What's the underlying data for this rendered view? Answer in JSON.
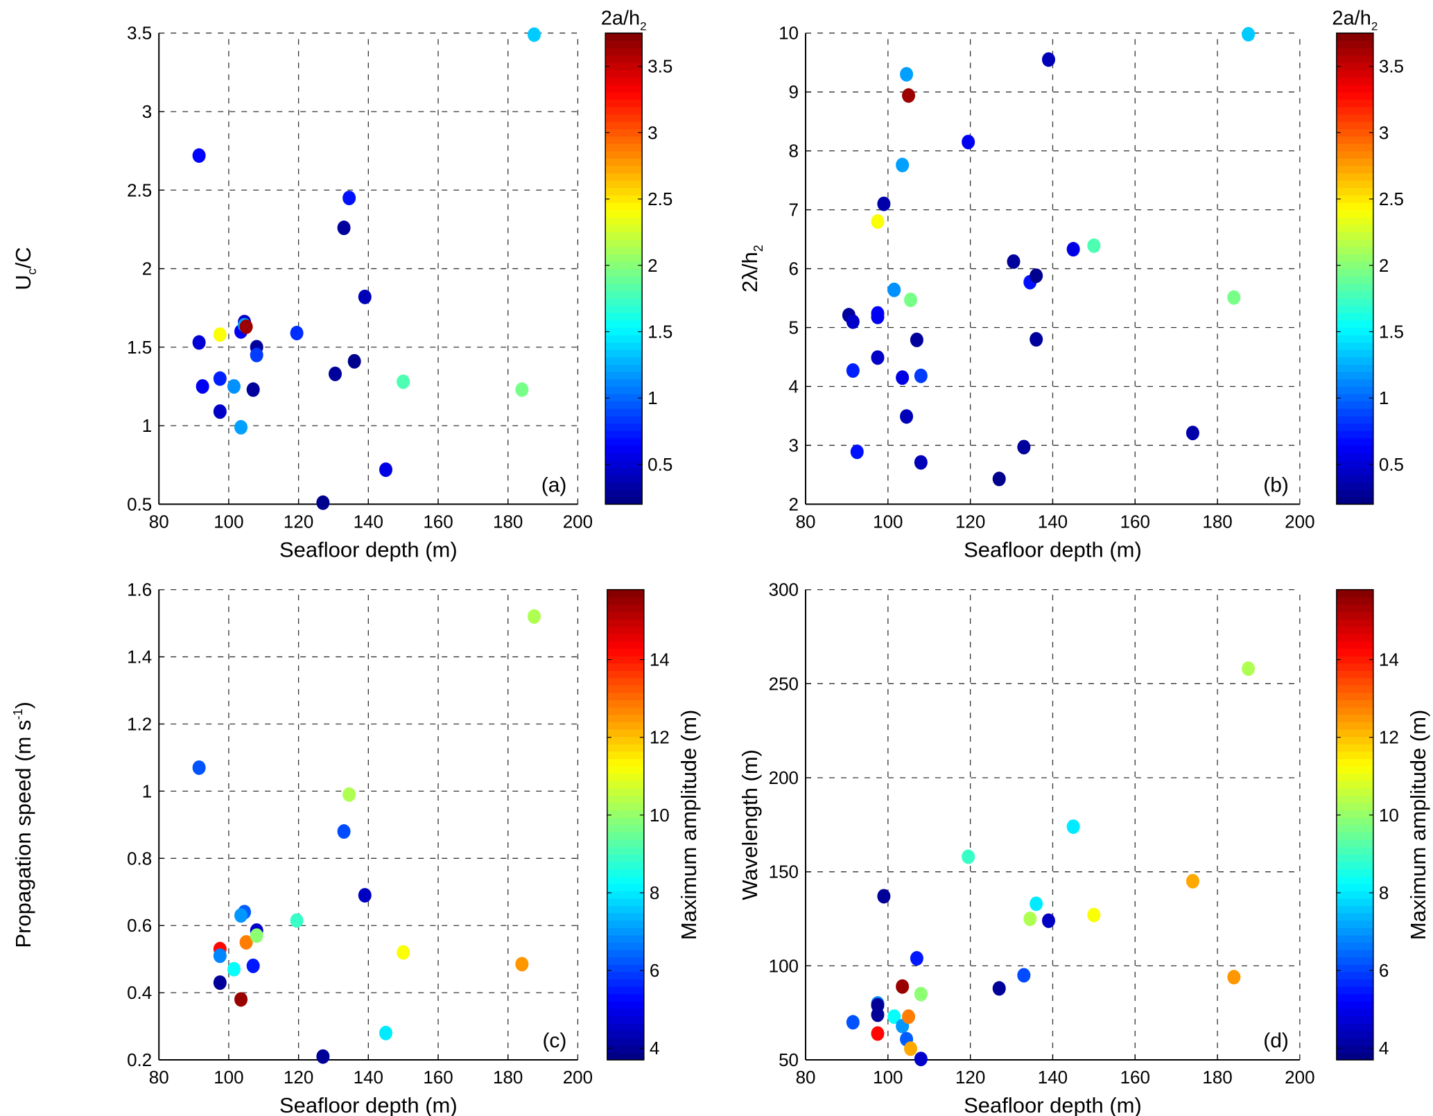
{
  "chart_data": [
    {
      "id": "a",
      "type": "scatter",
      "panel_label": "(a)",
      "xlabel": "Seafloor depth (m)",
      "ylabel_main": "U",
      "ylabel_sub": "c",
      "ylabel_tail": "/C",
      "xlim": [
        80,
        200
      ],
      "ylim": [
        0.5,
        3.5
      ],
      "xticks": [
        "80",
        "100",
        "120",
        "140",
        "160",
        "180",
        "200"
      ],
      "yticks": [
        "0.5",
        "1",
        "1.5",
        "2",
        "2.5",
        "3",
        "3.5"
      ],
      "grid": true,
      "colorbar": {
        "title_main": "2a/h",
        "title_sub": "2",
        "range": [
          0.2,
          3.75
        ],
        "ticks": [
          "0.5",
          "1",
          "1.5",
          "2",
          "2.5",
          "3",
          "3.5"
        ],
        "tick_values": [
          0.5,
          1,
          1.5,
          2,
          2.5,
          3,
          3.5
        ],
        "colormap": "jet"
      },
      "points": [
        {
          "x": 91.5,
          "y": 2.72,
          "c": 0.65
        },
        {
          "x": 91.5,
          "y": 1.53,
          "c": 0.5
        },
        {
          "x": 92.5,
          "y": 1.25,
          "c": 0.6
        },
        {
          "x": 97.5,
          "y": 1.58,
          "c": 2.4
        },
        {
          "x": 97.5,
          "y": 1.3,
          "c": 0.75
        },
        {
          "x": 97.5,
          "y": 1.09,
          "c": 0.45
        },
        {
          "x": 101.5,
          "y": 1.25,
          "c": 1.15
        },
        {
          "x": 103.5,
          "y": 0.99,
          "c": 1.2
        },
        {
          "x": 103.5,
          "y": 1.6,
          "c": 0.6
        },
        {
          "x": 104.5,
          "y": 1.66,
          "c": 0.45
        },
        {
          "x": 104.5,
          "y": 1.64,
          "c": 1.2
        },
        {
          "x": 105.0,
          "y": 1.63,
          "c": 3.65
        },
        {
          "x": 108.0,
          "y": 1.5,
          "c": 0.3
        },
        {
          "x": 108.0,
          "y": 1.45,
          "c": 0.85
        },
        {
          "x": 107.0,
          "y": 1.23,
          "c": 0.3
        },
        {
          "x": 119.5,
          "y": 1.59,
          "c": 0.8
        },
        {
          "x": 127.0,
          "y": 0.51,
          "c": 0.25
        },
        {
          "x": 130.5,
          "y": 1.33,
          "c": 0.3
        },
        {
          "x": 133.0,
          "y": 2.26,
          "c": 0.3
        },
        {
          "x": 134.5,
          "y": 2.45,
          "c": 0.7
        },
        {
          "x": 136.0,
          "y": 1.41,
          "c": 0.25
        },
        {
          "x": 139.0,
          "y": 1.82,
          "c": 0.4
        },
        {
          "x": 145.0,
          "y": 0.72,
          "c": 0.55
        },
        {
          "x": 150.0,
          "y": 1.28,
          "c": 1.8
        },
        {
          "x": 184.0,
          "y": 1.23,
          "c": 1.95
        },
        {
          "x": 187.5,
          "y": 3.49,
          "c": 1.35
        }
      ]
    },
    {
      "id": "b",
      "type": "scatter",
      "panel_label": "(b)",
      "xlabel": "Seafloor depth (m)",
      "ylabel_main": "2λ/h",
      "ylabel_sub": "2",
      "ylabel_tail": "",
      "xlim": [
        80,
        200
      ],
      "ylim": [
        2,
        10
      ],
      "xticks": [
        "80",
        "100",
        "120",
        "140",
        "160",
        "180",
        "200"
      ],
      "yticks": [
        "2",
        "3",
        "4",
        "5",
        "6",
        "7",
        "8",
        "9",
        "10"
      ],
      "grid": true,
      "colorbar": {
        "title_main": "2a/h",
        "title_sub": "2",
        "range": [
          0.2,
          3.75
        ],
        "ticks": [
          "0.5",
          "1",
          "1.5",
          "2",
          "2.5",
          "3",
          "3.5"
        ],
        "tick_values": [
          0.5,
          1,
          1.5,
          2,
          2.5,
          3,
          3.5
        ],
        "colormap": "jet"
      },
      "points": [
        {
          "x": 90.5,
          "y": 5.21,
          "c": 0.3
        },
        {
          "x": 91.5,
          "y": 5.1,
          "c": 0.45
        },
        {
          "x": 91.5,
          "y": 4.27,
          "c": 0.75
        },
        {
          "x": 92.5,
          "y": 2.89,
          "c": 0.7
        },
        {
          "x": 97.5,
          "y": 6.8,
          "c": 2.4
        },
        {
          "x": 97.5,
          "y": 5.24,
          "c": 0.65
        },
        {
          "x": 97.5,
          "y": 5.18,
          "c": 0.6
        },
        {
          "x": 97.5,
          "y": 4.49,
          "c": 0.45
        },
        {
          "x": 99.0,
          "y": 7.1,
          "c": 0.35
        },
        {
          "x": 101.5,
          "y": 5.64,
          "c": 1.15
        },
        {
          "x": 103.5,
          "y": 7.76,
          "c": 1.2
        },
        {
          "x": 103.5,
          "y": 4.15,
          "c": 0.55
        },
        {
          "x": 104.5,
          "y": 9.3,
          "c": 1.2
        },
        {
          "x": 104.5,
          "y": 3.49,
          "c": 0.4
        },
        {
          "x": 105.0,
          "y": 8.94,
          "c": 3.65
        },
        {
          "x": 105.5,
          "y": 5.47,
          "c": 1.95
        },
        {
          "x": 107.0,
          "y": 4.79,
          "c": 0.3
        },
        {
          "x": 108.0,
          "y": 4.18,
          "c": 0.85
        },
        {
          "x": 108.0,
          "y": 2.71,
          "c": 0.4
        },
        {
          "x": 119.5,
          "y": 8.15,
          "c": 0.6
        },
        {
          "x": 127.0,
          "y": 2.43,
          "c": 0.25
        },
        {
          "x": 130.5,
          "y": 6.12,
          "c": 0.3
        },
        {
          "x": 133.0,
          "y": 2.97,
          "c": 0.3
        },
        {
          "x": 134.5,
          "y": 5.77,
          "c": 0.7
        },
        {
          "x": 136.0,
          "y": 5.88,
          "c": 0.25
        },
        {
          "x": 136.0,
          "y": 4.8,
          "c": 0.3
        },
        {
          "x": 139.0,
          "y": 9.55,
          "c": 0.4
        },
        {
          "x": 145.0,
          "y": 6.33,
          "c": 0.55
        },
        {
          "x": 150.0,
          "y": 6.39,
          "c": 1.8
        },
        {
          "x": 174.0,
          "y": 3.21,
          "c": 0.35
        },
        {
          "x": 184.0,
          "y": 5.51,
          "c": 1.95
        },
        {
          "x": 187.5,
          "y": 9.98,
          "c": 1.35
        }
      ]
    },
    {
      "id": "c",
      "type": "scatter",
      "panel_label": "(c)",
      "xlabel": "Seafloor depth (m)",
      "ylabel_main": "Propagation speed (m s",
      "ylabel_sup": "-1",
      "ylabel_tail": ")",
      "xlim": [
        80,
        200
      ],
      "ylim": [
        0.2,
        1.6
      ],
      "xticks": [
        "80",
        "100",
        "120",
        "140",
        "160",
        "180",
        "200"
      ],
      "yticks": [
        "0.2",
        "0.4",
        "0.6",
        "0.8",
        "1",
        "1.2",
        "1.4",
        "1.6"
      ],
      "grid": true,
      "colorbar": {
        "title": "Maximum amplitude (m)",
        "range": [
          3.7,
          15.8
        ],
        "ticks": [
          "4",
          "6",
          "8",
          "10",
          "12",
          "14"
        ],
        "tick_values": [
          4,
          6,
          8,
          10,
          12,
          14
        ],
        "colormap": "jet"
      },
      "points": [
        {
          "x": 91.5,
          "y": 1.07,
          "c": 6.2
        },
        {
          "x": 97.5,
          "y": 0.53,
          "c": 14.2
        },
        {
          "x": 97.5,
          "y": 0.51,
          "c": 6.8
        },
        {
          "x": 97.5,
          "y": 0.43,
          "c": 4.0
        },
        {
          "x": 101.5,
          "y": 0.47,
          "c": 8.3
        },
        {
          "x": 103.5,
          "y": 0.38,
          "c": 15.5
        },
        {
          "x": 104.5,
          "y": 0.64,
          "c": 6.3
        },
        {
          "x": 103.5,
          "y": 0.63,
          "c": 7.0
        },
        {
          "x": 105.0,
          "y": 0.55,
          "c": 12.8
        },
        {
          "x": 107.0,
          "y": 0.48,
          "c": 5.5
        },
        {
          "x": 108.0,
          "y": 0.585,
          "c": 4.6
        },
        {
          "x": 108.0,
          "y": 0.57,
          "c": 9.9
        },
        {
          "x": 119.5,
          "y": 0.615,
          "c": 8.9
        },
        {
          "x": 127.0,
          "y": 0.21,
          "c": 4.0
        },
        {
          "x": 133.0,
          "y": 0.88,
          "c": 6.1
        },
        {
          "x": 134.5,
          "y": 0.99,
          "c": 10.3
        },
        {
          "x": 139.0,
          "y": 0.69,
          "c": 4.5
        },
        {
          "x": 145.0,
          "y": 0.28,
          "c": 8.0
        },
        {
          "x": 150.0,
          "y": 0.52,
          "c": 11.2
        },
        {
          "x": 184.0,
          "y": 0.485,
          "c": 12.5
        },
        {
          "x": 187.5,
          "y": 1.52,
          "c": 10.3
        }
      ]
    },
    {
      "id": "d",
      "type": "scatter",
      "panel_label": "(d)",
      "xlabel": "Seafloor depth (m)",
      "ylabel_main": "Wavelength (m)",
      "xlim": [
        80,
        200
      ],
      "ylim": [
        50,
        300
      ],
      "xticks": [
        "80",
        "100",
        "120",
        "140",
        "160",
        "180",
        "200"
      ],
      "yticks": [
        "50",
        "100",
        "150",
        "200",
        "250",
        "300"
      ],
      "grid": true,
      "colorbar": {
        "title": "Maximum amplitude (m)",
        "range": [
          3.7,
          15.8
        ],
        "ticks": [
          "4",
          "6",
          "8",
          "10",
          "12",
          "14"
        ],
        "tick_values": [
          4,
          6,
          8,
          10,
          12,
          14
        ],
        "colormap": "jet"
      },
      "points": [
        {
          "x": 91.5,
          "y": 70,
          "c": 6.2
        },
        {
          "x": 97.5,
          "y": 80,
          "c": 6.8
        },
        {
          "x": 97.5,
          "y": 79,
          "c": 4.0
        },
        {
          "x": 97.5,
          "y": 74,
          "c": 4.0
        },
        {
          "x": 97.5,
          "y": 64,
          "c": 14.2
        },
        {
          "x": 99.0,
          "y": 137,
          "c": 4.0
        },
        {
          "x": 101.5,
          "y": 73,
          "c": 8.3
        },
        {
          "x": 103.5,
          "y": 89,
          "c": 15.5
        },
        {
          "x": 103.5,
          "y": 68,
          "c": 7.0
        },
        {
          "x": 104.5,
          "y": 61,
          "c": 6.3
        },
        {
          "x": 105.0,
          "y": 73,
          "c": 12.8
        },
        {
          "x": 105.5,
          "y": 56,
          "c": 12.3
        },
        {
          "x": 107.0,
          "y": 104,
          "c": 5.5
        },
        {
          "x": 108.0,
          "y": 85,
          "c": 9.9
        },
        {
          "x": 108.0,
          "y": 50.5,
          "c": 4.6
        },
        {
          "x": 119.5,
          "y": 158,
          "c": 8.9
        },
        {
          "x": 127.0,
          "y": 88,
          "c": 4.0
        },
        {
          "x": 133.0,
          "y": 95,
          "c": 6.1
        },
        {
          "x": 134.5,
          "y": 125,
          "c": 10.3
        },
        {
          "x": 136.0,
          "y": 133,
          "c": 8.0
        },
        {
          "x": 139.0,
          "y": 124,
          "c": 4.5
        },
        {
          "x": 145.0,
          "y": 174,
          "c": 8.0
        },
        {
          "x": 150.0,
          "y": 127,
          "c": 11.2
        },
        {
          "x": 174.0,
          "y": 145,
          "c": 12.3
        },
        {
          "x": 184.0,
          "y": 94,
          "c": 12.5
        },
        {
          "x": 187.5,
          "y": 258,
          "c": 10.3
        }
      ]
    }
  ]
}
